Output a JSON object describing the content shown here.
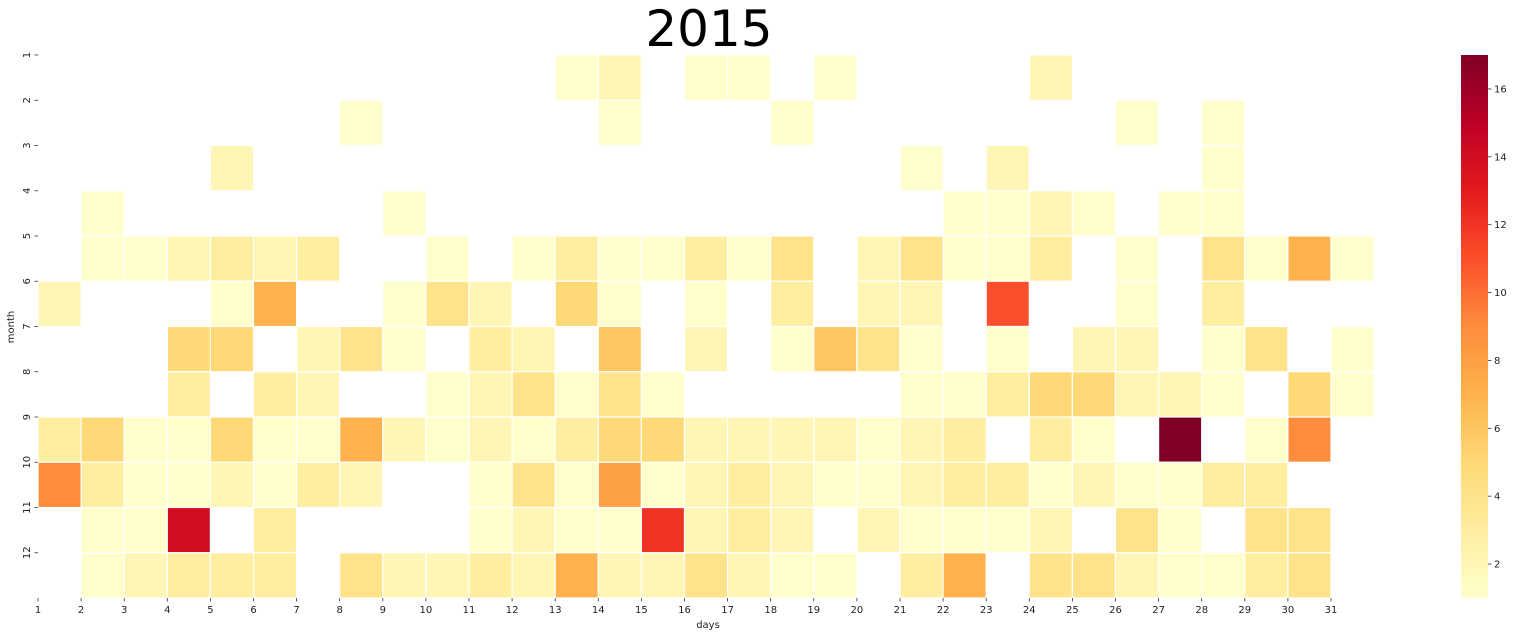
{
  "chart_data": {
    "type": "heatmap",
    "title": "2015",
    "xlabel": "days",
    "ylabel": "month",
    "x_tick_labels": [
      "1",
      "2",
      "3",
      "4",
      "5",
      "6",
      "7",
      "8",
      "9",
      "10",
      "11",
      "12",
      "13",
      "14",
      "15",
      "16",
      "17",
      "18",
      "19",
      "20",
      "21",
      "22",
      "23",
      "24",
      "25",
      "26",
      "27",
      "28",
      "29",
      "30",
      "31"
    ],
    "y_tick_labels": [
      "1",
      "2",
      "3",
      "4",
      "5",
      "6",
      "7",
      "8",
      "9",
      "10",
      "11",
      "12"
    ],
    "colorbar": {
      "range": [
        1,
        17
      ],
      "ticks": [
        2,
        4,
        6,
        8,
        10,
        12,
        14,
        16
      ],
      "colormap": "YlOrRd",
      "colors": [
        "#ffffcc",
        "#ffeda0",
        "#fed976",
        "#feb24c",
        "#fd8d3c",
        "#fc4e2a",
        "#e31a1c",
        "#bd0026",
        "#800026"
      ]
    },
    "grid": false,
    "cell_border_color": "#ffffff",
    "cells": [
      {
        "month": 1,
        "day": 13,
        "value": 1
      },
      {
        "month": 1,
        "day": 14,
        "value": 2
      },
      {
        "month": 1,
        "day": 16,
        "value": 1
      },
      {
        "month": 1,
        "day": 17,
        "value": 1
      },
      {
        "month": 1,
        "day": 19,
        "value": 1
      },
      {
        "month": 1,
        "day": 24,
        "value": 2
      },
      {
        "month": 2,
        "day": 8,
        "value": 1
      },
      {
        "month": 2,
        "day": 14,
        "value": 1
      },
      {
        "month": 2,
        "day": 18,
        "value": 1
      },
      {
        "month": 2,
        "day": 26,
        "value": 1
      },
      {
        "month": 2,
        "day": 28,
        "value": 1
      },
      {
        "month": 3,
        "day": 5,
        "value": 2
      },
      {
        "month": 3,
        "day": 21,
        "value": 1
      },
      {
        "month": 3,
        "day": 23,
        "value": 2
      },
      {
        "month": 3,
        "day": 28,
        "value": 1
      },
      {
        "month": 4,
        "day": 2,
        "value": 1
      },
      {
        "month": 4,
        "day": 9,
        "value": 1
      },
      {
        "month": 4,
        "day": 22,
        "value": 1
      },
      {
        "month": 4,
        "day": 23,
        "value": 1
      },
      {
        "month": 4,
        "day": 24,
        "value": 2
      },
      {
        "month": 4,
        "day": 25,
        "value": 1
      },
      {
        "month": 4,
        "day": 27,
        "value": 1
      },
      {
        "month": 4,
        "day": 28,
        "value": 1
      },
      {
        "month": 5,
        "day": 2,
        "value": 1
      },
      {
        "month": 5,
        "day": 3,
        "value": 1
      },
      {
        "month": 5,
        "day": 4,
        "value": 2
      },
      {
        "month": 5,
        "day": 5,
        "value": 3
      },
      {
        "month": 5,
        "day": 6,
        "value": 2
      },
      {
        "month": 5,
        "day": 7,
        "value": 3
      },
      {
        "month": 5,
        "day": 10,
        "value": 1
      },
      {
        "month": 5,
        "day": 12,
        "value": 1
      },
      {
        "month": 5,
        "day": 13,
        "value": 3
      },
      {
        "month": 5,
        "day": 14,
        "value": 1
      },
      {
        "month": 5,
        "day": 15,
        "value": 1
      },
      {
        "month": 5,
        "day": 16,
        "value": 3
      },
      {
        "month": 5,
        "day": 17,
        "value": 1
      },
      {
        "month": 5,
        "day": 18,
        "value": 4
      },
      {
        "month": 5,
        "day": 20,
        "value": 2
      },
      {
        "month": 5,
        "day": 21,
        "value": 4
      },
      {
        "month": 5,
        "day": 22,
        "value": 1
      },
      {
        "month": 5,
        "day": 23,
        "value": 1
      },
      {
        "month": 5,
        "day": 24,
        "value": 3
      },
      {
        "month": 5,
        "day": 26,
        "value": 1
      },
      {
        "month": 5,
        "day": 28,
        "value": 4
      },
      {
        "month": 5,
        "day": 29,
        "value": 1
      },
      {
        "month": 5,
        "day": 30,
        "value": 7
      },
      {
        "month": 5,
        "day": 31,
        "value": 1
      },
      {
        "month": 6,
        "day": 1,
        "value": 2
      },
      {
        "month": 6,
        "day": 5,
        "value": 1
      },
      {
        "month": 6,
        "day": 6,
        "value": 7
      },
      {
        "month": 6,
        "day": 9,
        "value": 1
      },
      {
        "month": 6,
        "day": 10,
        "value": 4
      },
      {
        "month": 6,
        "day": 11,
        "value": 2
      },
      {
        "month": 6,
        "day": 13,
        "value": 5
      },
      {
        "month": 6,
        "day": 14,
        "value": 1
      },
      {
        "month": 6,
        "day": 16,
        "value": 1
      },
      {
        "month": 6,
        "day": 18,
        "value": 3
      },
      {
        "month": 6,
        "day": 20,
        "value": 2
      },
      {
        "month": 6,
        "day": 21,
        "value": 2
      },
      {
        "month": 6,
        "day": 23,
        "value": 11
      },
      {
        "month": 6,
        "day": 26,
        "value": 1
      },
      {
        "month": 6,
        "day": 28,
        "value": 3
      },
      {
        "month": 7,
        "day": 4,
        "value": 5
      },
      {
        "month": 7,
        "day": 5,
        "value": 5
      },
      {
        "month": 7,
        "day": 7,
        "value": 2
      },
      {
        "month": 7,
        "day": 8,
        "value": 4
      },
      {
        "month": 7,
        "day": 9,
        "value": 1
      },
      {
        "month": 7,
        "day": 11,
        "value": 3
      },
      {
        "month": 7,
        "day": 12,
        "value": 2
      },
      {
        "month": 7,
        "day": 14,
        "value": 6
      },
      {
        "month": 7,
        "day": 16,
        "value": 2
      },
      {
        "month": 7,
        "day": 18,
        "value": 1
      },
      {
        "month": 7,
        "day": 19,
        "value": 6
      },
      {
        "month": 7,
        "day": 20,
        "value": 4
      },
      {
        "month": 7,
        "day": 21,
        "value": 1
      },
      {
        "month": 7,
        "day": 23,
        "value": 1
      },
      {
        "month": 7,
        "day": 25,
        "value": 2
      },
      {
        "month": 7,
        "day": 26,
        "value": 2
      },
      {
        "month": 7,
        "day": 28,
        "value": 1
      },
      {
        "month": 7,
        "day": 29,
        "value": 4
      },
      {
        "month": 7,
        "day": 31,
        "value": 1
      },
      {
        "month": 8,
        "day": 4,
        "value": 3
      },
      {
        "month": 8,
        "day": 6,
        "value": 3
      },
      {
        "month": 8,
        "day": 7,
        "value": 2
      },
      {
        "month": 8,
        "day": 10,
        "value": 1
      },
      {
        "month": 8,
        "day": 11,
        "value": 2
      },
      {
        "month": 8,
        "day": 12,
        "value": 4
      },
      {
        "month": 8,
        "day": 13,
        "value": 1
      },
      {
        "month": 8,
        "day": 14,
        "value": 4
      },
      {
        "month": 8,
        "day": 15,
        "value": 1
      },
      {
        "month": 8,
        "day": 21,
        "value": 1
      },
      {
        "month": 8,
        "day": 22,
        "value": 1
      },
      {
        "month": 8,
        "day": 23,
        "value": 3
      },
      {
        "month": 8,
        "day": 24,
        "value": 5
      },
      {
        "month": 8,
        "day": 25,
        "value": 5
      },
      {
        "month": 8,
        "day": 26,
        "value": 2
      },
      {
        "month": 8,
        "day": 27,
        "value": 2
      },
      {
        "month": 8,
        "day": 28,
        "value": 1
      },
      {
        "month": 8,
        "day": 30,
        "value": 5
      },
      {
        "month": 8,
        "day": 31,
        "value": 1
      },
      {
        "month": 9,
        "day": 1,
        "value": 3
      },
      {
        "month": 9,
        "day": 2,
        "value": 5
      },
      {
        "month": 9,
        "day": 3,
        "value": 1
      },
      {
        "month": 9,
        "day": 4,
        "value": 1
      },
      {
        "month": 9,
        "day": 5,
        "value": 5
      },
      {
        "month": 9,
        "day": 6,
        "value": 1
      },
      {
        "month": 9,
        "day": 7,
        "value": 1
      },
      {
        "month": 9,
        "day": 8,
        "value": 7
      },
      {
        "month": 9,
        "day": 9,
        "value": 2
      },
      {
        "month": 9,
        "day": 10,
        "value": 1
      },
      {
        "month": 9,
        "day": 11,
        "value": 2
      },
      {
        "month": 9,
        "day": 12,
        "value": 1
      },
      {
        "month": 9,
        "day": 13,
        "value": 3
      },
      {
        "month": 9,
        "day": 14,
        "value": 5
      },
      {
        "month": 9,
        "day": 15,
        "value": 5
      },
      {
        "month": 9,
        "day": 16,
        "value": 2
      },
      {
        "month": 9,
        "day": 17,
        "value": 2
      },
      {
        "month": 9,
        "day": 18,
        "value": 2
      },
      {
        "month": 9,
        "day": 19,
        "value": 2
      },
      {
        "month": 9,
        "day": 20,
        "value": 1
      },
      {
        "month": 9,
        "day": 21,
        "value": 2
      },
      {
        "month": 9,
        "day": 22,
        "value": 3
      },
      {
        "month": 9,
        "day": 24,
        "value": 3
      },
      {
        "month": 9,
        "day": 25,
        "value": 1
      },
      {
        "month": 9,
        "day": 27,
        "value": 17
      },
      {
        "month": 9,
        "day": 29,
        "value": 1
      },
      {
        "month": 9,
        "day": 30,
        "value": 9
      },
      {
        "month": 10,
        "day": 1,
        "value": 9
      },
      {
        "month": 10,
        "day": 2,
        "value": 3
      },
      {
        "month": 10,
        "day": 3,
        "value": 1
      },
      {
        "month": 10,
        "day": 4,
        "value": 1
      },
      {
        "month": 10,
        "day": 5,
        "value": 2
      },
      {
        "month": 10,
        "day": 6,
        "value": 1
      },
      {
        "month": 10,
        "day": 7,
        "value": 3
      },
      {
        "month": 10,
        "day": 8,
        "value": 2
      },
      {
        "month": 10,
        "day": 11,
        "value": 1
      },
      {
        "month": 10,
        "day": 12,
        "value": 4
      },
      {
        "month": 10,
        "day": 13,
        "value": 1
      },
      {
        "month": 10,
        "day": 14,
        "value": 8
      },
      {
        "month": 10,
        "day": 15,
        "value": 1
      },
      {
        "month": 10,
        "day": 16,
        "value": 2
      },
      {
        "month": 10,
        "day": 17,
        "value": 3
      },
      {
        "month": 10,
        "day": 18,
        "value": 2
      },
      {
        "month": 10,
        "day": 19,
        "value": 1
      },
      {
        "month": 10,
        "day": 20,
        "value": 1
      },
      {
        "month": 10,
        "day": 21,
        "value": 2
      },
      {
        "month": 10,
        "day": 22,
        "value": 3
      },
      {
        "month": 10,
        "day": 23,
        "value": 3
      },
      {
        "month": 10,
        "day": 24,
        "value": 1
      },
      {
        "month": 10,
        "day": 25,
        "value": 2
      },
      {
        "month": 10,
        "day": 26,
        "value": 1
      },
      {
        "month": 10,
        "day": 27,
        "value": 1
      },
      {
        "month": 10,
        "day": 28,
        "value": 3
      },
      {
        "month": 10,
        "day": 29,
        "value": 3
      },
      {
        "month": 11,
        "day": 2,
        "value": 1
      },
      {
        "month": 11,
        "day": 3,
        "value": 1
      },
      {
        "month": 11,
        "day": 4,
        "value": 14
      },
      {
        "month": 11,
        "day": 6,
        "value": 3
      },
      {
        "month": 11,
        "day": 11,
        "value": 1
      },
      {
        "month": 11,
        "day": 12,
        "value": 2
      },
      {
        "month": 11,
        "day": 13,
        "value": 1
      },
      {
        "month": 11,
        "day": 14,
        "value": 1
      },
      {
        "month": 11,
        "day": 15,
        "value": 12
      },
      {
        "month": 11,
        "day": 16,
        "value": 2
      },
      {
        "month": 11,
        "day": 17,
        "value": 3
      },
      {
        "month": 11,
        "day": 18,
        "value": 2
      },
      {
        "month": 11,
        "day": 20,
        "value": 2
      },
      {
        "month": 11,
        "day": 21,
        "value": 1
      },
      {
        "month": 11,
        "day": 22,
        "value": 1
      },
      {
        "month": 11,
        "day": 23,
        "value": 1
      },
      {
        "month": 11,
        "day": 24,
        "value": 2
      },
      {
        "month": 11,
        "day": 26,
        "value": 4
      },
      {
        "month": 11,
        "day": 27,
        "value": 1
      },
      {
        "month": 11,
        "day": 29,
        "value": 4
      },
      {
        "month": 11,
        "day": 30,
        "value": 4
      },
      {
        "month": 12,
        "day": 2,
        "value": 1
      },
      {
        "month": 12,
        "day": 3,
        "value": 2
      },
      {
        "month": 12,
        "day": 4,
        "value": 3
      },
      {
        "month": 12,
        "day": 5,
        "value": 3
      },
      {
        "month": 12,
        "day": 6,
        "value": 3
      },
      {
        "month": 12,
        "day": 8,
        "value": 4
      },
      {
        "month": 12,
        "day": 9,
        "value": 2
      },
      {
        "month": 12,
        "day": 10,
        "value": 2
      },
      {
        "month": 12,
        "day": 11,
        "value": 3
      },
      {
        "month": 12,
        "day": 12,
        "value": 2
      },
      {
        "month": 12,
        "day": 13,
        "value": 7
      },
      {
        "month": 12,
        "day": 14,
        "value": 2
      },
      {
        "month": 12,
        "day": 15,
        "value": 2
      },
      {
        "month": 12,
        "day": 16,
        "value": 4
      },
      {
        "month": 12,
        "day": 17,
        "value": 2
      },
      {
        "month": 12,
        "day": 18,
        "value": 1
      },
      {
        "month": 12,
        "day": 19,
        "value": 1
      },
      {
        "month": 12,
        "day": 21,
        "value": 3
      },
      {
        "month": 12,
        "day": 22,
        "value": 7
      },
      {
        "month": 12,
        "day": 24,
        "value": 4
      },
      {
        "month": 12,
        "day": 25,
        "value": 4
      },
      {
        "month": 12,
        "day": 26,
        "value": 2
      },
      {
        "month": 12,
        "day": 27,
        "value": 1
      },
      {
        "month": 12,
        "day": 28,
        "value": 1
      },
      {
        "month": 12,
        "day": 29,
        "value": 3
      },
      {
        "month": 12,
        "day": 30,
        "value": 4
      }
    ]
  }
}
